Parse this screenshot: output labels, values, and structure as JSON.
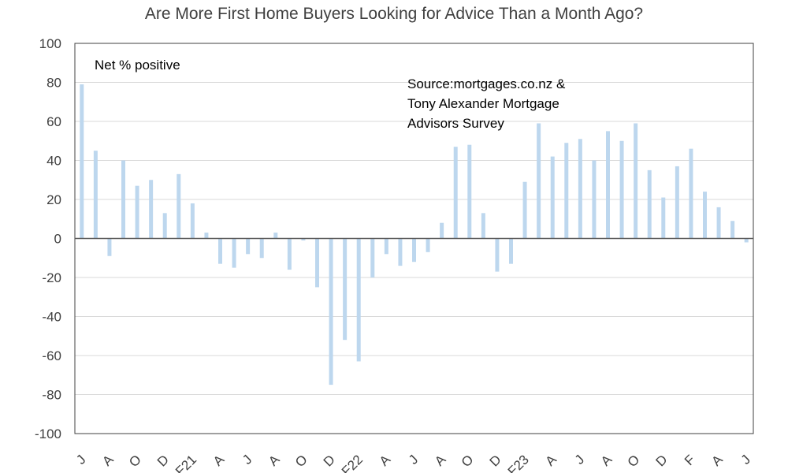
{
  "chart_data": {
    "type": "bar",
    "title": "Are More First Home Buyers Looking for Advice Than a Month Ago?",
    "ylim": [
      -100,
      100
    ],
    "y_ticks": [
      100,
      80,
      60,
      40,
      20,
      0,
      -20,
      -40,
      -60,
      -80,
      -100
    ],
    "grid": true,
    "bar_color": "#bdd7ee",
    "annotations": {
      "series_note": "Net % positive",
      "source_lines": [
        "Source:mortgages.co.nz  &",
        "Tony Alexander Mortgage",
        "Advisors Survey"
      ]
    },
    "x_tick_labels": [
      "J",
      "A",
      "O",
      "D",
      "F21",
      "A",
      "J",
      "A",
      "O",
      "D",
      "F22",
      "A",
      "J",
      "A",
      "O",
      "D",
      "F23",
      "A",
      "J",
      "A",
      "O",
      "D",
      "F",
      "A",
      "J"
    ],
    "values": [
      79,
      45,
      -9,
      40,
      27,
      30,
      13,
      33,
      18,
      3,
      -13,
      -15,
      -8,
      -10,
      3,
      -16,
      -1,
      -25,
      -75,
      -52,
      -63,
      -20,
      -8,
      -14,
      -12,
      -7,
      8,
      47,
      48,
      13,
      -17,
      -13,
      29,
      59,
      42,
      49,
      51,
      40,
      55,
      50,
      59,
      35,
      21,
      37,
      46,
      24,
      16,
      9,
      -2
    ]
  }
}
